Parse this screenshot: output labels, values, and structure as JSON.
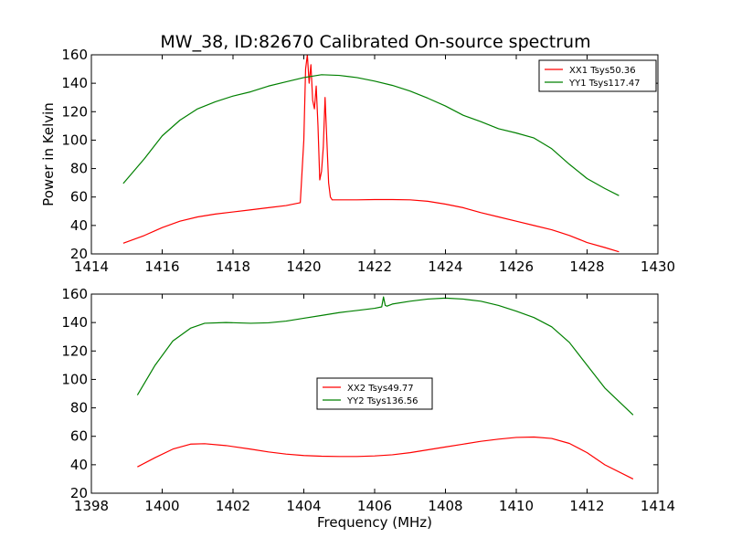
{
  "title": "MW_38, ID:82670 Calibrated On-source spectrum",
  "chart_data": [
    {
      "type": "line",
      "title": "MW_38, ID:82670 Calibrated On-source spectrum",
      "xlabel": "",
      "ylabel": "Power in Kelvin",
      "xlim": [
        1414,
        1430
      ],
      "ylim": [
        20,
        160
      ],
      "xticks": [
        "1414",
        "1416",
        "1418",
        "1420",
        "1422",
        "1424",
        "1426",
        "1428",
        "1430"
      ],
      "yticks": [
        "20",
        "40",
        "60",
        "80",
        "100",
        "120",
        "140",
        "160"
      ],
      "legend_position": "top-right",
      "grid": false,
      "series": [
        {
          "name": "XX1 Tsys50.36",
          "color": "#ff0000",
          "x": [
            1414.9,
            1415.5,
            1416,
            1416.5,
            1417,
            1417.5,
            1418,
            1418.5,
            1419,
            1419.5,
            1419.9,
            1420.0,
            1420.05,
            1420.1,
            1420.15,
            1420.2,
            1420.25,
            1420.3,
            1420.35,
            1420.4,
            1420.45,
            1420.5,
            1420.55,
            1420.6,
            1420.65,
            1420.7,
            1420.75,
            1420.8,
            1421,
            1421.5,
            1422,
            1422.5,
            1423,
            1423.5,
            1424,
            1424.5,
            1425,
            1425.5,
            1426,
            1426.5,
            1427,
            1427.5,
            1428,
            1428.5,
            1428.9
          ],
          "values": [
            27.5,
            33,
            38.5,
            43,
            46,
            48,
            49.5,
            51,
            52.5,
            54,
            56,
            100,
            150,
            160,
            140,
            153,
            128,
            122,
            138,
            110,
            72,
            78,
            95,
            130,
            100,
            70,
            60,
            58,
            58,
            58,
            58.2,
            58.2,
            58,
            57,
            55,
            52.5,
            49,
            46,
            43,
            40,
            37,
            33,
            28,
            24.5,
            21.5
          ]
        },
        {
          "name": "YY1 Tsys117.47",
          "color": "#008000",
          "x": [
            1414.9,
            1415.5,
            1416,
            1416.5,
            1417,
            1417.5,
            1418,
            1418.5,
            1419,
            1419.5,
            1420,
            1420.5,
            1421,
            1421.5,
            1422,
            1422.5,
            1423,
            1423.5,
            1424,
            1424.5,
            1425,
            1425.5,
            1426,
            1426.5,
            1427,
            1427.5,
            1428,
            1428.5,
            1428.9
          ],
          "values": [
            69.5,
            87,
            103,
            114,
            122,
            127,
            131,
            134,
            138,
            141,
            144,
            146,
            145.5,
            144,
            141.5,
            138.5,
            134.5,
            129.5,
            124,
            117.5,
            113,
            108,
            105,
            101.5,
            94,
            83,
            73,
            66,
            61
          ]
        }
      ]
    },
    {
      "type": "line",
      "title": "",
      "xlabel": "Frequency (MHz)",
      "ylabel": "",
      "xlim": [
        1398,
        1414
      ],
      "ylim": [
        20,
        160
      ],
      "xticks": [
        "1398",
        "1400",
        "1402",
        "1404",
        "1406",
        "1408",
        "1410",
        "1412",
        "1414"
      ],
      "yticks": [
        "20",
        "40",
        "60",
        "80",
        "100",
        "120",
        "140",
        "160"
      ],
      "legend_position": "center",
      "grid": false,
      "series": [
        {
          "name": "XX2 Tsys49.77",
          "color": "#ff0000",
          "x": [
            1399.3,
            1399.8,
            1400.3,
            1400.8,
            1401.2,
            1401.8,
            1402.5,
            1403,
            1403.5,
            1404,
            1404.5,
            1405,
            1405.5,
            1406,
            1406.5,
            1407,
            1407.5,
            1408,
            1408.5,
            1409,
            1409.5,
            1410,
            1410.5,
            1411,
            1411.5,
            1412,
            1412.5,
            1413.3
          ],
          "values": [
            38.5,
            45,
            51,
            54.5,
            54.8,
            53.5,
            51,
            49,
            47.5,
            46.5,
            46,
            45.8,
            45.8,
            46.2,
            47,
            48.5,
            50.5,
            52.5,
            54.5,
            56.5,
            58,
            59.2,
            59.5,
            58.5,
            55,
            48.5,
            40,
            30
          ]
        },
        {
          "name": "YY2 Tsys136.56",
          "color": "#008000",
          "x": [
            1399.3,
            1399.8,
            1400.3,
            1400.8,
            1401.2,
            1401.8,
            1402.5,
            1403,
            1403.5,
            1404,
            1404.5,
            1405,
            1405.5,
            1406,
            1406.2,
            1406.25,
            1406.3,
            1406.35,
            1406.5,
            1407,
            1407.5,
            1408,
            1408.5,
            1409,
            1409.5,
            1410,
            1410.5,
            1411,
            1411.5,
            1412,
            1412.5,
            1413.3
          ],
          "values": [
            89,
            110,
            127,
            136,
            139.5,
            140,
            139.5,
            139.8,
            141,
            143,
            145,
            147,
            148.5,
            150,
            151,
            158,
            152,
            151.5,
            153,
            155,
            156.5,
            157.2,
            156.5,
            155,
            152,
            148,
            143.5,
            137,
            126,
            110,
            94,
            75
          ]
        }
      ]
    }
  ]
}
